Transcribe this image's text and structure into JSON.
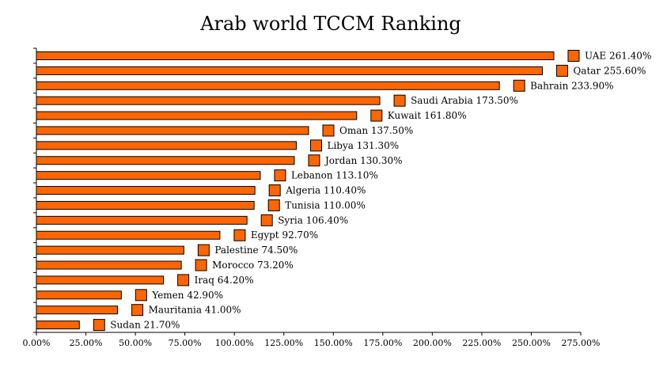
{
  "chart_data": {
    "type": "bar",
    "orientation": "horizontal",
    "title": "Arab world TCCM Ranking",
    "xlabel": "",
    "ylabel": "",
    "xlim": [
      0,
      275
    ],
    "x_ticks": [
      "0.00%",
      "25.00%",
      "50.00%",
      "75.00%",
      "100.00%",
      "125.00%",
      "150.00%",
      "175.00%",
      "200.00%",
      "225.00%",
      "250.00%",
      "275.00%"
    ],
    "grid": false,
    "bar_color": "#ff6600",
    "categories": [
      "UAE",
      "Qatar",
      "Bahrain",
      "Saudi Arabia",
      "Kuwait",
      "Oman",
      "Libya",
      "Jordan",
      "Lebanon",
      "Algeria",
      "Tunisia",
      "Syria",
      "Egypt",
      "Palestine",
      "Morocco",
      "Iraq",
      "Yemen",
      "Mauritania",
      "Sudan"
    ],
    "values": [
      261.4,
      255.6,
      233.9,
      173.5,
      161.8,
      137.5,
      131.3,
      130.3,
      113.1,
      110.4,
      110.0,
      106.4,
      92.7,
      74.5,
      73.2,
      64.2,
      42.9,
      41.0,
      21.7
    ],
    "data_labels": [
      "UAE 261.40%",
      "Qatar 255.60%",
      "Bahrain 233.90%",
      "Saudi Arabia 173.50%",
      "Kuwait 161.80%",
      "Oman 137.50%",
      "Libya 131.30%",
      "Jordan 130.30%",
      "Lebanon 113.10%",
      "Algeria 110.40%",
      "Tunisia 110.00%",
      "Syria 106.40%",
      "Egypt 92.70%",
      "Palestine 74.50%",
      "Morocco 73.20%",
      "Iraq 64.20%",
      "Yemen 42.90%",
      "Mauritania 41.00%",
      "Sudan 21.70%"
    ]
  }
}
